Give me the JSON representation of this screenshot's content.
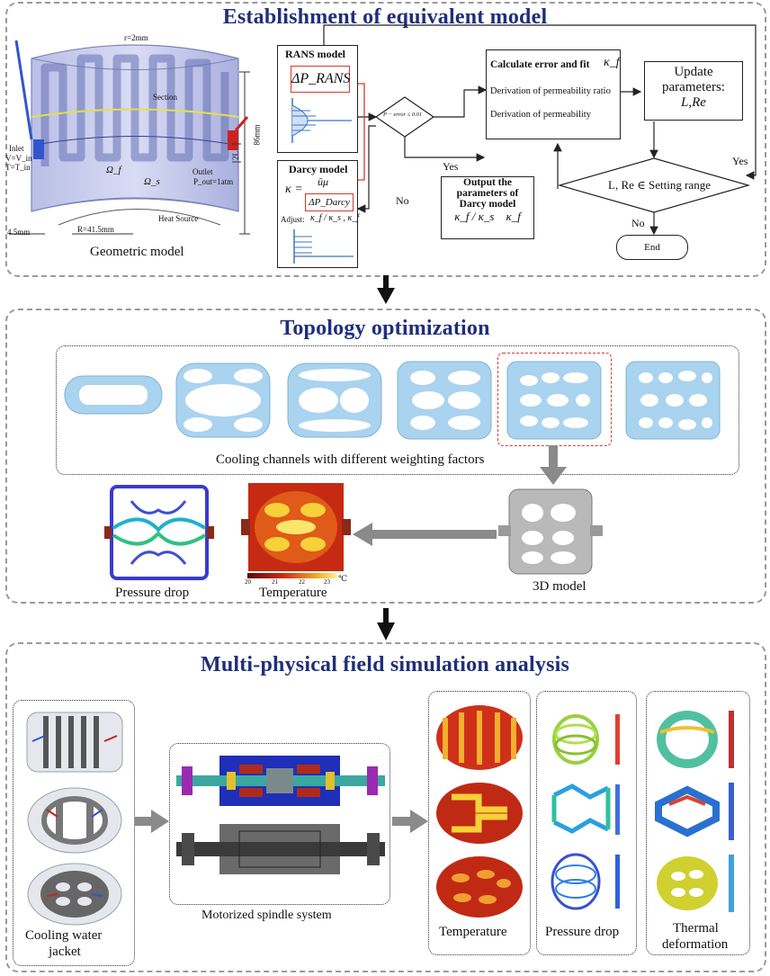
{
  "panel1": {
    "title": "Establishment of equivalent model",
    "geometric_model": {
      "caption": "Geometric model",
      "labels": {
        "r": "r=2mm",
        "section": "Section",
        "inlet": "Inlet",
        "inlet_v": "V=V_in",
        "inlet_t": "T=T_in",
        "outlet": "Outlet",
        "pout": "P_out=1atm",
        "omega_f": "Ω_f",
        "omega_s": "Ω_s",
        "heat_source": "Heat Source",
        "radius": "R=41.5mm",
        "thickness": "4.5mm",
        "height": "86mm",
        "two_l": "2L"
      }
    },
    "rans": {
      "title": "RANS model",
      "formula": "ΔP_RANS"
    },
    "darcy": {
      "title": "Darcy model",
      "kappa": "κ =",
      "num": "ūμ",
      "den": "ΔP_Darcy",
      "adjust_label": "Adjust:",
      "adjust_vars": "κ_f / κ_s , κ_f"
    },
    "decision1": {
      "text": "P − error ≤ 0.01",
      "yes": "Yes",
      "no": "No"
    },
    "calc": {
      "title": "Calculate error and fit",
      "title_var": "κ_f",
      "line1": "Derivation of permeability ratio",
      "line2": "Derivation of permeability"
    },
    "update": {
      "line1": "Update",
      "line2": "parameters:",
      "line3": "L,Re"
    },
    "output": {
      "line1": "Output the",
      "line2": "parameters of",
      "line3": "Darcy model",
      "vars": "κ_f / κ_s    κ_f"
    },
    "decision2": {
      "text": "L, Re ∈ Setting range",
      "yes": "Yes",
      "no": "No"
    },
    "end": "End"
  },
  "panel2": {
    "title": "Topology optimization",
    "channels_caption": "Cooling channels with different weighting factors",
    "pressure_caption": "Pressure drop",
    "temperature_caption": "Temperature",
    "colorbar_ticks": [
      "20",
      "21",
      "22",
      "23"
    ],
    "colorbar_unit": "℃",
    "model3d_caption": "3D model"
  },
  "panel3": {
    "title": "Multi-physical field simulation analysis",
    "jacket_caption_1": "Cooling water",
    "jacket_caption_2": "jacket",
    "spindle_caption": "Motorized spindle system",
    "temperature_caption": "Temperature",
    "pressure_caption": "Pressure drop",
    "deformation_caption_1": "Thermal",
    "deformation_caption_2": "deformation"
  },
  "colors": {
    "title": "#1f2f7a",
    "highlight_red": "#d9382a",
    "channel_blue": "#a9d3ef",
    "panel_border": "#9a9a9a"
  }
}
